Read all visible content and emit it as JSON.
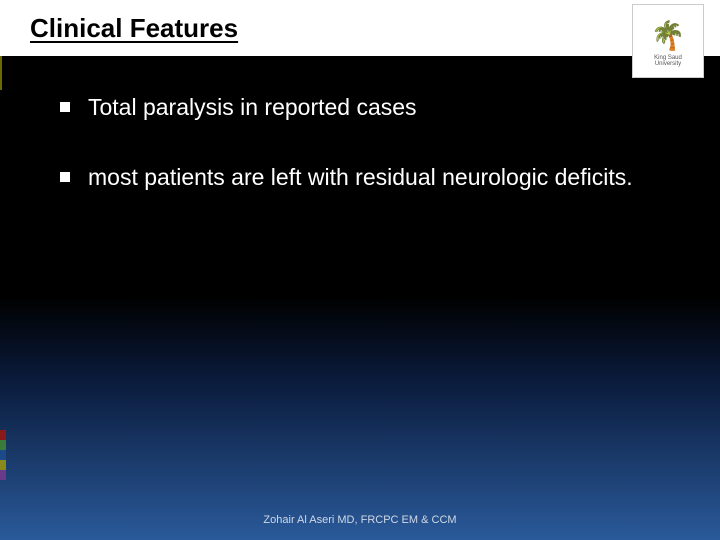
{
  "header": {
    "title": "Clinical Features",
    "title_color": "#000000",
    "underline": true,
    "background": "#ffffff"
  },
  "logo": {
    "symbol": "🌴",
    "institution_top": "King Saud",
    "institution_bottom": "University"
  },
  "slide": {
    "background_gradient": {
      "stops": [
        "#000000",
        "#000000",
        "#0a1a3a",
        "#1a3a6a",
        "#2a5a9a"
      ],
      "positions": [
        0,
        55,
        70,
        85,
        100
      ]
    },
    "text_color": "#ffffff",
    "bullet_marker": "square",
    "bullet_color": "#ffffff",
    "body_fontsize": 23
  },
  "bullets": [
    {
      "text": "Total paralysis in reported cases",
      "justify": false
    },
    {
      "text": "most patients are left with residual neurologic deficits.",
      "justify": true
    }
  ],
  "side_stripe_colors": [
    "#8a1a1a",
    "#3a7a3a",
    "#1a4a8a",
    "#8a8a1a",
    "#6a3a8a"
  ],
  "footer": {
    "text": "Zohair Al Aseri MD, FRCPC EM & CCM",
    "fontsize": 11,
    "color": "#d0d8e8"
  }
}
